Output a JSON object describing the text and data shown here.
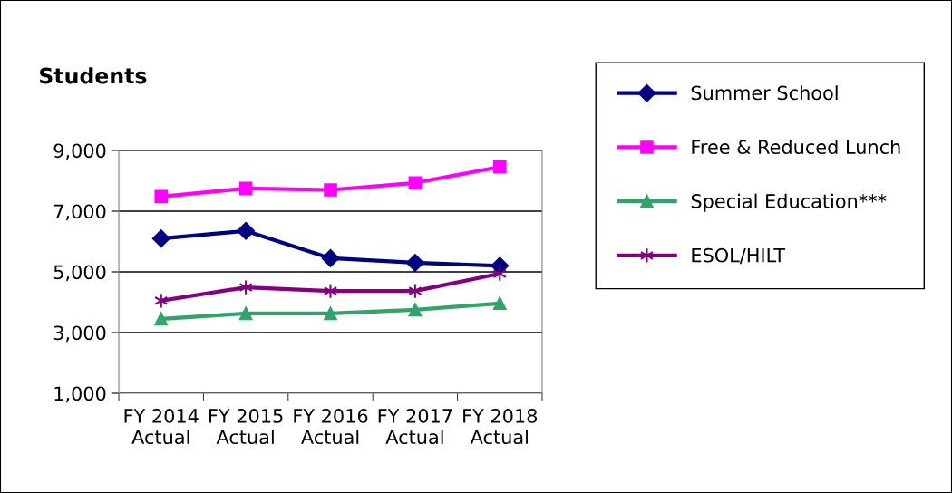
{
  "chart_data": {
    "type": "line",
    "ylabel": "Students",
    "categories": [
      "FY 2014\nActual",
      "FY 2015\nActual",
      "FY 2016\nActual",
      "FY 2017\nActual",
      "FY 2018\nActual"
    ],
    "series": [
      {
        "name": "Summer School",
        "color": "#000080",
        "marker": "diamond",
        "values": [
          6100,
          6350,
          5450,
          5300,
          5200
        ]
      },
      {
        "name": "Free & Reduced Lunch",
        "color": "#ff00ff",
        "marker": "square",
        "values": [
          7480,
          7750,
          7700,
          7930,
          8460
        ]
      },
      {
        "name": "Special Education***",
        "color": "#33a36b",
        "marker": "triangle",
        "values": [
          3450,
          3630,
          3630,
          3750,
          3960
        ]
      },
      {
        "name": "ESOL/HILT",
        "color": "#800080",
        "marker": "cross",
        "values": [
          4050,
          4490,
          4370,
          4370,
          4940
        ]
      }
    ],
    "ylim": [
      1000,
      9000
    ],
    "yticks": [
      {
        "value": 1000,
        "label": "1,000"
      },
      {
        "value": 3000,
        "label": "3,000"
      },
      {
        "value": 5000,
        "label": "5,000"
      },
      {
        "value": 7000,
        "label": "7,000"
      },
      {
        "value": 9000,
        "label": "9,000"
      }
    ],
    "grid": "y",
    "legend": "right",
    "line_style": "solid"
  }
}
